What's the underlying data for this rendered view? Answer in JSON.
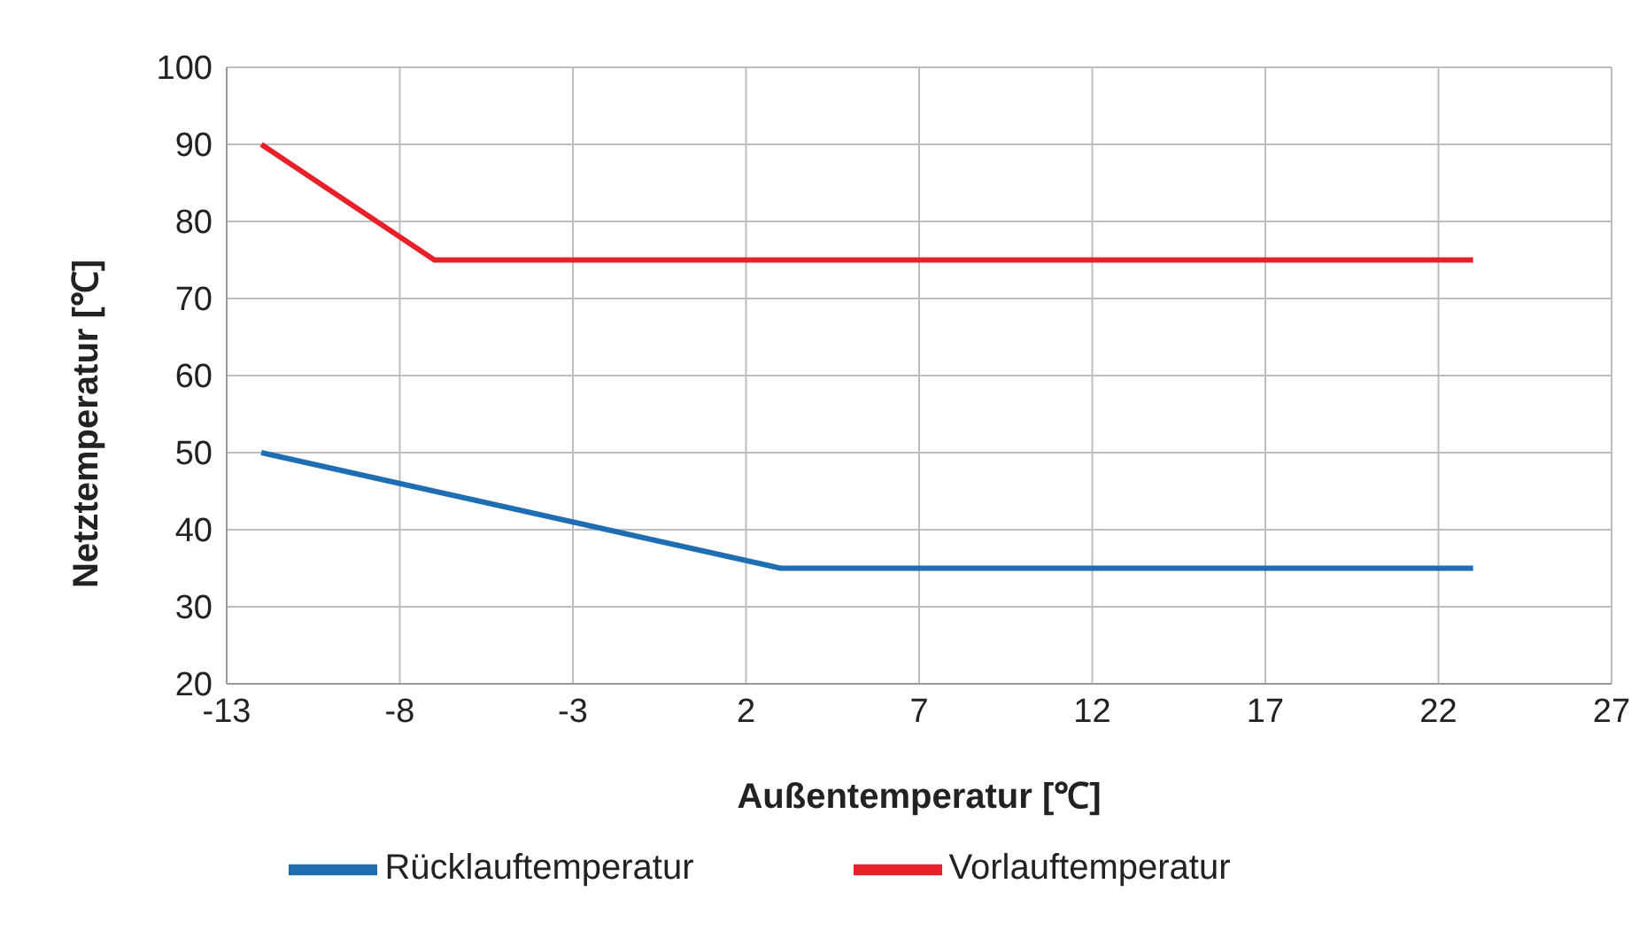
{
  "chart_data": {
    "type": "line",
    "xlabel": "Außentemperatur [℃]",
    "ylabel": "Netztemperatur [℃]",
    "xlim": [
      -13,
      27
    ],
    "xticks": [
      -13,
      -8,
      -3,
      2,
      7,
      12,
      17,
      22,
      27
    ],
    "ylim": [
      20,
      100
    ],
    "yticks": [
      20,
      30,
      40,
      50,
      60,
      70,
      80,
      90,
      100
    ],
    "grid": true,
    "legend": "bottom",
    "marker": "none",
    "line_style": "solid",
    "series": [
      {
        "name": "Vorlauftemperatur",
        "color": "#e8202a",
        "x": [
          -12,
          -7,
          23
        ],
        "values": [
          90,
          75,
          75
        ]
      },
      {
        "name": "Rücklauftemperatur",
        "color": "#1f6db3",
        "x": [
          -12,
          3,
          23
        ],
        "values": [
          50,
          35,
          35
        ]
      }
    ]
  }
}
